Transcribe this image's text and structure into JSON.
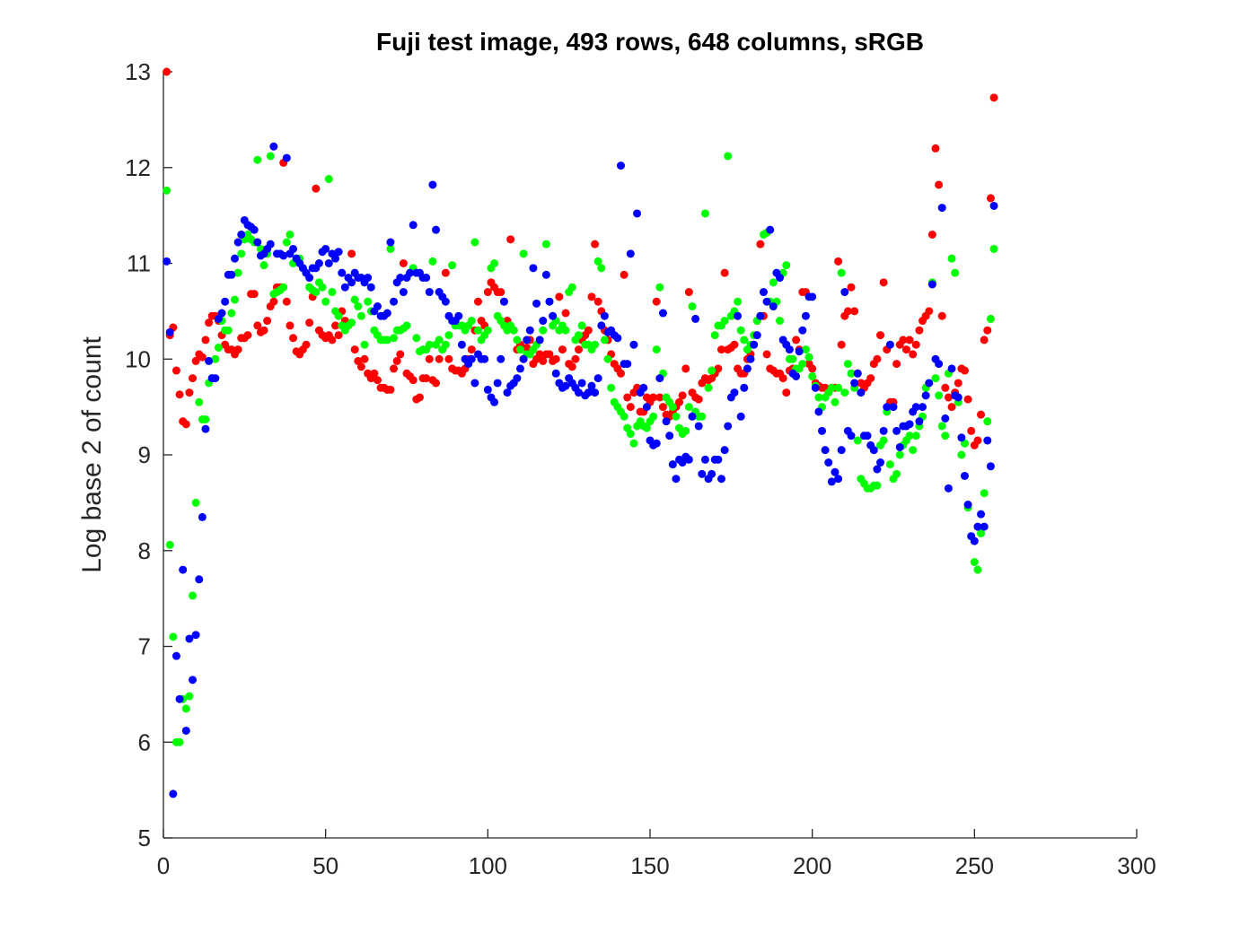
{
  "chart_data": {
    "type": "scatter",
    "title": "Fuji test image, 493 rows, 648 columns, sRGB",
    "y_label": "Log base 2 of count",
    "xlim": [
      0,
      300
    ],
    "xticks": [
      0,
      50,
      100,
      150,
      200,
      250,
      300
    ],
    "ylim": [
      5,
      13
    ],
    "yticks": [
      5,
      6,
      7,
      8,
      9,
      10,
      11,
      12,
      13
    ],
    "grid": false,
    "x": [
      1,
      2,
      3,
      4,
      5,
      6,
      7,
      8,
      9,
      10,
      11,
      12,
      13,
      14,
      15,
      16,
      17,
      18,
      19,
      20,
      21,
      22,
      23,
      24,
      25,
      26,
      27,
      28,
      29,
      30,
      31,
      32,
      33,
      34,
      35,
      36,
      37,
      38,
      39,
      40,
      41,
      42,
      43,
      44,
      45,
      46,
      47,
      48,
      49,
      50,
      51,
      52,
      53,
      54,
      55,
      56,
      57,
      58,
      59,
      60,
      61,
      62,
      63,
      64,
      65,
      66,
      67,
      68,
      69,
      70,
      71,
      72,
      73,
      74,
      75,
      76,
      77,
      78,
      79,
      80,
      81,
      82,
      83,
      84,
      85,
      86,
      87,
      88,
      89,
      90,
      91,
      92,
      93,
      94,
      95,
      96,
      97,
      98,
      99,
      100,
      101,
      102,
      103,
      104,
      105,
      106,
      107,
      108,
      109,
      110,
      111,
      112,
      113,
      114,
      115,
      116,
      117,
      118,
      119,
      120,
      121,
      122,
      123,
      124,
      125,
      126,
      127,
      128,
      129,
      130,
      131,
      132,
      133,
      134,
      135,
      136,
      137,
      138,
      139,
      140,
      141,
      142,
      143,
      144,
      145,
      146,
      147,
      148,
      149,
      150,
      151,
      152,
      153,
      154,
      155,
      156,
      157,
      158,
      159,
      160,
      161,
      162,
      163,
      164,
      165,
      166,
      167,
      168,
      169,
      170,
      171,
      172,
      173,
      174,
      175,
      176,
      177,
      178,
      179,
      180,
      181,
      182,
      183,
      184,
      185,
      186,
      187,
      188,
      189,
      190,
      191,
      192,
      193,
      194,
      195,
      196,
      197,
      198,
      199,
      200,
      201,
      202,
      203,
      204,
      205,
      206,
      207,
      208,
      209,
      210,
      211,
      212,
      213,
      214,
      215,
      216,
      217,
      218,
      219,
      220,
      221,
      222,
      223,
      224,
      225,
      226,
      227,
      228,
      229,
      230,
      231,
      232,
      233,
      234,
      235,
      236,
      237,
      238,
      239,
      240,
      241,
      242,
      243,
      244,
      245,
      246,
      247,
      248,
      249,
      250,
      251,
      252,
      253,
      254,
      255,
      256
    ],
    "series": [
      {
        "color": "#ff0000",
        "values": [
          13.0,
          10.25,
          10.33,
          9.88,
          9.63,
          9.35,
          9.32,
          9.65,
          9.8,
          9.98,
          10.05,
          10.02,
          10.2,
          10.38,
          10.45,
          10.45,
          10.4,
          10.25,
          10.15,
          10.1,
          10.1,
          10.05,
          10.1,
          10.22,
          10.22,
          10.25,
          10.68,
          10.68,
          10.35,
          10.28,
          10.3,
          10.4,
          10.55,
          10.6,
          10.75,
          10.75,
          12.05,
          10.6,
          10.35,
          10.22,
          10.08,
          10.05,
          10.1,
          10.15,
          10.38,
          10.65,
          11.78,
          10.3,
          10.25,
          10.22,
          10.25,
          10.2,
          10.35,
          10.25,
          10.5,
          10.4,
          10.35,
          11.1,
          10.1,
          9.98,
          9.92,
          10.0,
          9.85,
          9.8,
          9.85,
          9.78,
          9.7,
          9.7,
          9.68,
          9.68,
          9.9,
          9.98,
          10.05,
          11.0,
          9.85,
          9.82,
          9.78,
          9.58,
          9.6,
          9.8,
          9.8,
          10.0,
          9.78,
          9.75,
          10.0,
          10.1,
          10.9,
          10.0,
          9.9,
          9.88,
          9.88,
          9.85,
          9.9,
          10.0,
          10.1,
          10.3,
          10.6,
          10.4,
          10.35,
          10.7,
          10.8,
          10.75,
          10.7,
          10.7,
          10.6,
          10.4,
          11.25,
          10.3,
          10.1,
          10.15,
          10.0,
          10.12,
          10.2,
          9.95,
          10.0,
          10.05,
          9.98,
          10.05,
          10.05,
          9.98,
          10.0,
          10.65,
          10.1,
          10.48,
          9.95,
          9.92,
          10.0,
          10.1,
          10.2,
          10.25,
          10.3,
          10.65,
          11.2,
          10.6,
          10.5,
          10.3,
          10.2,
          10.05,
          9.95,
          9.9,
          9.85,
          10.88,
          9.6,
          9.5,
          9.65,
          9.7,
          9.45,
          9.45,
          9.6,
          9.55,
          9.6,
          10.6,
          9.6,
          9.5,
          9.42,
          9.4,
          9.45,
          9.5,
          9.55,
          9.62,
          9.9,
          10.7,
          9.65,
          9.6,
          9.58,
          9.75,
          9.8,
          9.78,
          9.8,
          9.85,
          9.9,
          10.1,
          10.9,
          10.1,
          10.12,
          10.15,
          9.9,
          9.85,
          9.85,
          10.0,
          10.05,
          10.15,
          10.4,
          11.2,
          10.45,
          10.05,
          9.9,
          9.88,
          9.85,
          9.85,
          9.8,
          9.65,
          9.88,
          9.9,
          10.2,
          10.1,
          10.7,
          10.7,
          9.95,
          9.9,
          9.75,
          9.72,
          9.7,
          9.7,
          9.65,
          9.7,
          9.7,
          11.02,
          10.15,
          10.45,
          10.5,
          10.75,
          10.5,
          9.85,
          9.75,
          9.7,
          9.75,
          9.8,
          9.95,
          10.0,
          10.25,
          10.8,
          10.1,
          9.55,
          9.55,
          9.95,
          10.15,
          10.2,
          10.1,
          10.2,
          10.05,
          10.15,
          10.3,
          10.4,
          10.45,
          10.5,
          11.3,
          12.2,
          11.82,
          10.45,
          9.7,
          9.6,
          9.5,
          9.65,
          9.75,
          9.9,
          9.88,
          9.58,
          9.25,
          9.1,
          9.15,
          9.42,
          10.2,
          10.3,
          11.68,
          12.73
        ]
      },
      {
        "color": "#00ff00",
        "values": [
          11.76,
          8.06,
          7.1,
          6.0,
          6.0,
          6.45,
          6.35,
          6.48,
          7.53,
          8.5,
          9.55,
          9.37,
          9.37,
          9.75,
          9.8,
          10.0,
          10.12,
          10.4,
          10.3,
          10.3,
          10.48,
          10.62,
          10.9,
          11.1,
          11.25,
          11.3,
          11.25,
          11.22,
          12.08,
          11.15,
          10.98,
          11.1,
          12.12,
          10.68,
          10.7,
          10.72,
          10.75,
          11.22,
          11.3,
          11.0,
          11.05,
          11.05,
          10.95,
          10.9,
          10.75,
          10.72,
          10.7,
          10.8,
          10.75,
          10.6,
          11.88,
          10.7,
          10.5,
          10.45,
          10.35,
          10.3,
          10.35,
          10.38,
          10.62,
          10.55,
          10.45,
          10.15,
          10.6,
          10.5,
          10.3,
          10.25,
          10.2,
          10.2,
          10.2,
          11.15,
          10.22,
          10.3,
          10.3,
          10.32,
          10.35,
          10.9,
          10.95,
          10.22,
          10.08,
          10.1,
          10.1,
          10.15,
          11.02,
          10.15,
          10.2,
          10.1,
          10.15,
          10.25,
          10.98,
          10.35,
          10.35,
          10.35,
          10.3,
          10.35,
          10.4,
          11.22,
          10.3,
          10.2,
          10.25,
          10.3,
          10.95,
          11.0,
          10.45,
          10.4,
          10.35,
          10.3,
          10.35,
          10.3,
          10.2,
          10.1,
          11.1,
          10.05,
          10.05,
          10.1,
          10.15,
          10.2,
          10.3,
          11.2,
          10.6,
          10.35,
          10.4,
          10.3,
          10.35,
          10.3,
          10.7,
          10.75,
          10.2,
          10.25,
          10.35,
          10.15,
          10.15,
          10.1,
          10.15,
          11.02,
          10.95,
          10.2,
          10.0,
          9.7,
          9.55,
          9.5,
          9.45,
          9.4,
          9.28,
          9.22,
          9.12,
          9.3,
          9.35,
          9.3,
          9.28,
          9.35,
          9.4,
          10.1,
          10.75,
          9.85,
          9.6,
          9.55,
          9.5,
          9.4,
          9.28,
          9.22,
          9.25,
          9.5,
          10.55,
          9.45,
          9.4,
          9.4,
          11.52,
          9.7,
          9.88,
          10.25,
          10.35,
          10.35,
          10.4,
          12.12,
          10.45,
          10.5,
          10.6,
          10.3,
          10.2,
          10.1,
          10.15,
          10.25,
          10.4,
          10.45,
          11.3,
          11.32,
          10.6,
          10.8,
          10.6,
          10.4,
          10.9,
          10.98,
          10.0,
          10.0,
          9.9,
          9.9,
          9.95,
          10.1,
          10.02,
          9.82,
          9.72,
          9.6,
          9.5,
          9.6,
          9.65,
          9.7,
          9.55,
          9.7,
          10.9,
          9.65,
          9.95,
          9.85,
          9.7,
          9.15,
          8.75,
          8.7,
          8.65,
          8.65,
          8.68,
          8.68,
          9.1,
          9.15,
          9.45,
          8.9,
          8.75,
          8.8,
          9.0,
          9.1,
          9.15,
          9.2,
          9.05,
          9.2,
          9.3,
          9.4,
          9.7,
          9.75,
          10.8,
          9.8,
          9.62,
          9.3,
          9.2,
          9.85,
          11.05,
          10.9,
          9.55,
          9.0,
          9.12,
          8.45,
          8.15,
          7.88,
          7.8,
          8.18,
          8.6,
          9.35,
          10.42,
          11.15
        ]
      },
      {
        "color": "#0000ff",
        "values": [
          11.02,
          10.28,
          5.46,
          6.9,
          6.45,
          7.8,
          6.12,
          7.08,
          6.65,
          7.12,
          7.7,
          8.35,
          9.27,
          9.98,
          9.8,
          9.8,
          10.42,
          10.48,
          10.6,
          10.88,
          10.88,
          11.05,
          11.22,
          11.3,
          11.45,
          11.4,
          11.38,
          11.35,
          11.22,
          11.08,
          11.1,
          11.15,
          11.2,
          12.22,
          11.1,
          11.1,
          11.08,
          12.1,
          11.1,
          11.15,
          11.05,
          11.0,
          10.95,
          10.9,
          10.85,
          10.95,
          10.95,
          11.0,
          11.12,
          11.15,
          11.0,
          11.1,
          11.05,
          11.12,
          10.9,
          10.75,
          10.85,
          10.8,
          10.9,
          10.85,
          10.85,
          10.8,
          10.85,
          10.75,
          10.5,
          10.55,
          10.45,
          10.45,
          10.48,
          11.22,
          10.6,
          10.8,
          10.85,
          10.7,
          10.85,
          10.9,
          11.4,
          10.9,
          10.9,
          10.85,
          10.85,
          10.7,
          11.82,
          11.35,
          10.7,
          10.65,
          10.6,
          10.45,
          10.4,
          10.4,
          10.45,
          10.15,
          10.0,
          9.95,
          10.0,
          9.75,
          10.05,
          10.0,
          10.0,
          9.68,
          9.6,
          9.55,
          9.75,
          10.0,
          10.6,
          9.65,
          9.72,
          9.75,
          9.8,
          9.9,
          10.0,
          10.2,
          10.3,
          10.95,
          10.58,
          10.2,
          10.4,
          10.88,
          10.6,
          10.45,
          9.85,
          9.75,
          9.7,
          9.72,
          9.8,
          9.75,
          9.7,
          9.65,
          9.75,
          9.62,
          9.65,
          9.72,
          9.65,
          9.8,
          10.35,
          10.45,
          10.28,
          10.3,
          10.25,
          10.22,
          12.02,
          9.95,
          9.95,
          11.1,
          10.15,
          11.52,
          9.65,
          9.7,
          9.5,
          9.15,
          9.1,
          9.12,
          9.8,
          10.48,
          9.35,
          9.2,
          8.9,
          8.75,
          8.95,
          8.92,
          8.98,
          8.95,
          9.4,
          10.42,
          9.3,
          8.8,
          8.95,
          8.75,
          8.8,
          8.95,
          8.95,
          8.75,
          9.05,
          9.3,
          9.6,
          9.65,
          10.45,
          9.4,
          9.7,
          9.9,
          10.0,
          10.15,
          10.25,
          10.45,
          10.7,
          10.6,
          11.35,
          10.55,
          10.9,
          10.85,
          10.2,
          10.15,
          10.1,
          9.85,
          9.82,
          10.08,
          10.3,
          10.45,
          10.65,
          10.65,
          9.7,
          9.45,
          9.25,
          9.05,
          8.92,
          8.72,
          8.82,
          8.75,
          9.05,
          10.7,
          9.25,
          9.2,
          9.75,
          9.85,
          9.65,
          9.2,
          9.2,
          9.1,
          9.05,
          8.85,
          8.92,
          9.25,
          9.5,
          10.15,
          9.5,
          9.25,
          9.08,
          9.3,
          9.3,
          9.32,
          9.45,
          9.5,
          9.35,
          9.5,
          9.62,
          9.75,
          10.78,
          10.0,
          9.95,
          11.58,
          9.38,
          8.65,
          9.9,
          9.62,
          9.6,
          9.18,
          8.78,
          8.48,
          8.15,
          8.1,
          8.25,
          8.38,
          8.25,
          9.15,
          8.88,
          11.6
        ]
      }
    ]
  }
}
